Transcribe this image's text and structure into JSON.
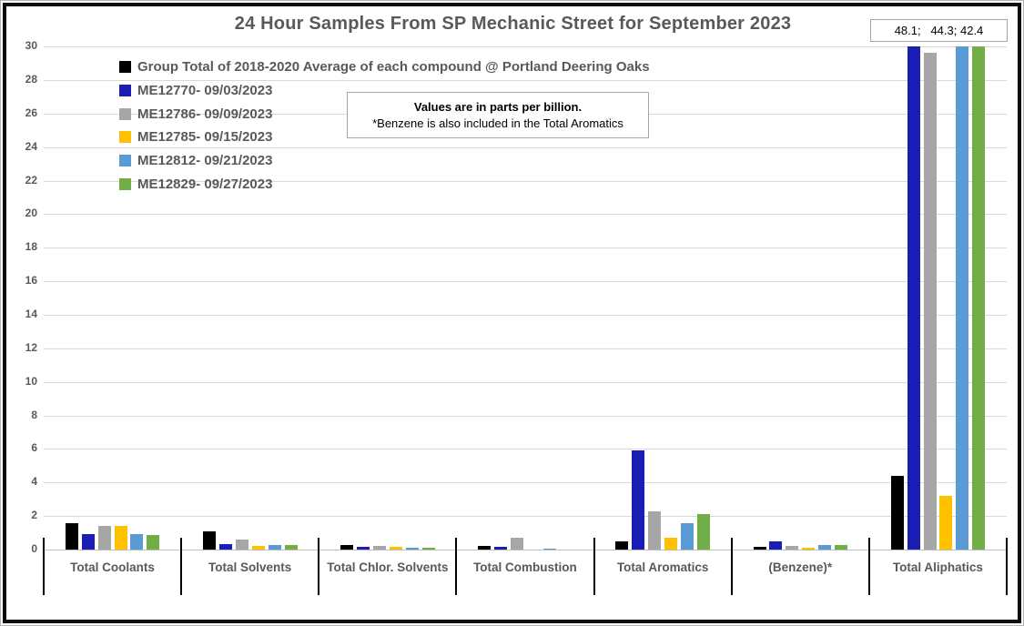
{
  "title": "24 Hour Samples From SP Mechanic Street for September 2023",
  "note_box": {
    "line1": "Values are in parts per billion.",
    "line2": "*Benzene is also included in the Total Aromatics"
  },
  "overflow_label": "48.1;   44.3; 42.4",
  "chart_data": {
    "type": "bar",
    "title": "24 Hour Samples From SP Mechanic Street for September 2023",
    "categories": [
      "Total Coolants",
      "Total Solvents",
      "Total Chlor. Solvents",
      "Total Combustion",
      "Total Aromatics",
      "(Benzene)*",
      "Total Aliphatics"
    ],
    "series": [
      {
        "name": "Group Total of 2018-2020 Average of each compound @ Portland Deering Oaks",
        "color": "#000000",
        "values": [
          1.6,
          1.1,
          0.3,
          0.2,
          0.5,
          0.15,
          4.4
        ]
      },
      {
        "name": "ME12770- 09/03/2023",
        "color": "#1b1eb4",
        "values": [
          0.9,
          0.35,
          0.15,
          0.15,
          5.9,
          0.5,
          48.1
        ]
      },
      {
        "name": "ME12786- 09/09/2023",
        "color": "#a6a6a6",
        "values": [
          1.4,
          0.6,
          0.2,
          0.7,
          2.3,
          0.2,
          29.6
        ]
      },
      {
        "name": "ME12785- 09/15/2023",
        "color": "#ffc000",
        "values": [
          1.4,
          0.2,
          0.15,
          0,
          0.7,
          0.1,
          3.2
        ]
      },
      {
        "name": "ME12812- 09/21/2023",
        "color": "#5b9bd5",
        "values": [
          0.95,
          0.25,
          0.1,
          0.05,
          1.6,
          0.25,
          44.3
        ]
      },
      {
        "name": "ME12829- 09/27/2023",
        "color": "#70ad47",
        "values": [
          0.85,
          0.3,
          0.1,
          0,
          2.1,
          0.25,
          42.4
        ]
      }
    ],
    "ylim": [
      0,
      30
    ],
    "ytick_step": 2,
    "yticks": [
      0,
      2,
      4,
      6,
      8,
      10,
      12,
      14,
      16,
      18,
      20,
      22,
      24,
      26,
      28,
      30
    ],
    "gridlines": true,
    "legend_position": "top-left-inside",
    "units": "parts per billion",
    "clipped_bars_note": "Bars taller than 30 are clipped at the axis maximum; their true values appear in the boxed label at top right."
  }
}
